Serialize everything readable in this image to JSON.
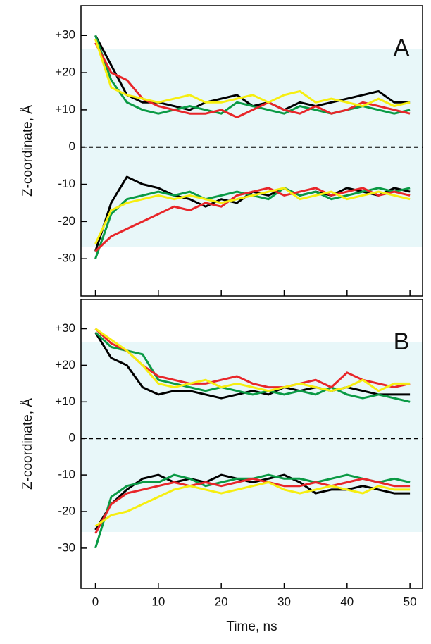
{
  "chart_data": [
    {
      "type": "line",
      "panel_label": "A",
      "y_label": "Z-coordinate, Å",
      "x": [
        0,
        2.5,
        5,
        7.5,
        10,
        12.5,
        15,
        17.5,
        20,
        22.5,
        25,
        27.5,
        30,
        32.5,
        35,
        37.5,
        40,
        42.5,
        45,
        47.5,
        50
      ],
      "xlim": [
        -2.3,
        52
      ],
      "xticks": [
        0,
        10,
        20,
        30,
        40,
        50
      ],
      "ylim": [
        -40,
        38
      ],
      "yticks": [
        {
          "value": 30,
          "label": "+30"
        },
        {
          "value": 20,
          "label": "+20"
        },
        {
          "value": 10,
          "label": "+10"
        },
        0,
        -10,
        -20,
        -30
      ],
      "reference_line": 0,
      "series": [
        {
          "color": "#000000",
          "values": [
            30,
            22,
            14,
            12,
            12,
            11,
            10,
            12,
            13,
            14,
            11,
            12,
            10,
            12,
            11,
            12,
            13,
            14,
            15,
            12,
            12
          ]
        },
        {
          "color": "#0a9a45",
          "values": [
            30,
            18,
            12,
            10,
            9,
            10,
            11,
            10,
            9,
            12,
            11,
            10,
            9,
            11,
            10,
            9,
            10,
            11,
            10,
            9,
            10
          ]
        },
        {
          "color": "#e8262a",
          "values": [
            28,
            20,
            18,
            13,
            11,
            10,
            9,
            9,
            10,
            8,
            10,
            12,
            10,
            9,
            11,
            9,
            10,
            12,
            11,
            10,
            9
          ]
        },
        {
          "color": "#f6ee10",
          "values": [
            29,
            16,
            14,
            13,
            12,
            13,
            14,
            12,
            12,
            13,
            14,
            12,
            14,
            15,
            12,
            13,
            12,
            11,
            13,
            11,
            12
          ]
        },
        {
          "color": "#000000",
          "values": [
            -28,
            -15,
            -8,
            -10,
            -11,
            -13,
            -14,
            -16,
            -14,
            -15,
            -12,
            -13,
            -11,
            -13,
            -12,
            -13,
            -11,
            -12,
            -13,
            -11,
            -12
          ]
        },
        {
          "color": "#0a9a45",
          "values": [
            -30,
            -18,
            -14,
            -13,
            -12,
            -13,
            -12,
            -14,
            -13,
            -12,
            -13,
            -14,
            -11,
            -13,
            -12,
            -14,
            -13,
            -12,
            -11,
            -12,
            -11
          ]
        },
        {
          "color": "#e8262a",
          "values": [
            -28,
            -24,
            -22,
            -20,
            -18,
            -16,
            -17,
            -15,
            -16,
            -13,
            -12,
            -11,
            -13,
            -12,
            -11,
            -13,
            -12,
            -11,
            -13,
            -12,
            -13
          ]
        },
        {
          "color": "#f6ee10",
          "values": [
            -26,
            -17,
            -15,
            -14,
            -13,
            -14,
            -13,
            -14,
            -15,
            -14,
            -13,
            -12,
            -11,
            -14,
            -13,
            -12,
            -14,
            -13,
            -12,
            -13,
            -14
          ]
        }
      ]
    },
    {
      "type": "line",
      "panel_label": "B",
      "y_label": "Z-coordinate, Å",
      "x_label": "Time, ns",
      "x": [
        0,
        2.5,
        5,
        7.5,
        10,
        12.5,
        15,
        17.5,
        20,
        22.5,
        25,
        27.5,
        30,
        32.5,
        35,
        37.5,
        40,
        42.5,
        45,
        47.5,
        50
      ],
      "xlim": [
        -2.3,
        52
      ],
      "xticks": [
        0,
        10,
        20,
        30,
        40,
        50
      ],
      "ylim": [
        -41,
        38
      ],
      "yticks": [
        {
          "value": 30,
          "label": "+30"
        },
        {
          "value": 20,
          "label": "+20"
        },
        {
          "value": 10,
          "label": "+10"
        },
        0,
        -10,
        -20,
        -30
      ],
      "reference_line": 0,
      "series": [
        {
          "color": "#000000",
          "values": [
            29,
            22,
            20,
            14,
            12,
            13,
            13,
            12,
            11,
            12,
            13,
            12,
            14,
            13,
            14,
            13,
            14,
            13,
            12,
            12,
            12
          ]
        },
        {
          "color": "#0a9a45",
          "values": [
            29,
            25,
            24,
            23,
            16,
            15,
            14,
            13,
            14,
            13,
            12,
            13,
            12,
            13,
            12,
            14,
            12,
            11,
            12,
            11,
            10
          ]
        },
        {
          "color": "#e8262a",
          "values": [
            30,
            26,
            24,
            20,
            17,
            16,
            15,
            15,
            16,
            17,
            15,
            14,
            14,
            15,
            16,
            14,
            18,
            16,
            15,
            14,
            15
          ]
        },
        {
          "color": "#f6ee10",
          "values": [
            30,
            27,
            24,
            20,
            15,
            14,
            15,
            16,
            14,
            15,
            14,
            13,
            14,
            15,
            14,
            13,
            14,
            16,
            13,
            15,
            15
          ]
        },
        {
          "color": "#000000",
          "values": [
            -25,
            -18,
            -14,
            -11,
            -10,
            -12,
            -11,
            -12,
            -10,
            -11,
            -12,
            -11,
            -10,
            -12,
            -15,
            -14,
            -14,
            -13,
            -14,
            -15,
            -15
          ]
        },
        {
          "color": "#0a9a45",
          "values": [
            -30,
            -16,
            -13,
            -12,
            -12,
            -10,
            -11,
            -13,
            -12,
            -11,
            -11,
            -10,
            -11,
            -11,
            -12,
            -11,
            -10,
            -11,
            -12,
            -11,
            -12
          ]
        },
        {
          "color": "#e8262a",
          "values": [
            -26,
            -18,
            -15,
            -14,
            -13,
            -12,
            -13,
            -12,
            -13,
            -12,
            -11,
            -12,
            -13,
            -13,
            -12,
            -13,
            -12,
            -11,
            -12,
            -13,
            -13
          ]
        },
        {
          "color": "#f6ee10",
          "values": [
            -24,
            -21,
            -20,
            -18,
            -16,
            -14,
            -13,
            -14,
            -15,
            -14,
            -13,
            -12,
            -14,
            -15,
            -14,
            -13,
            -14,
            -15,
            -13,
            -14,
            -14
          ]
        }
      ]
    }
  ]
}
